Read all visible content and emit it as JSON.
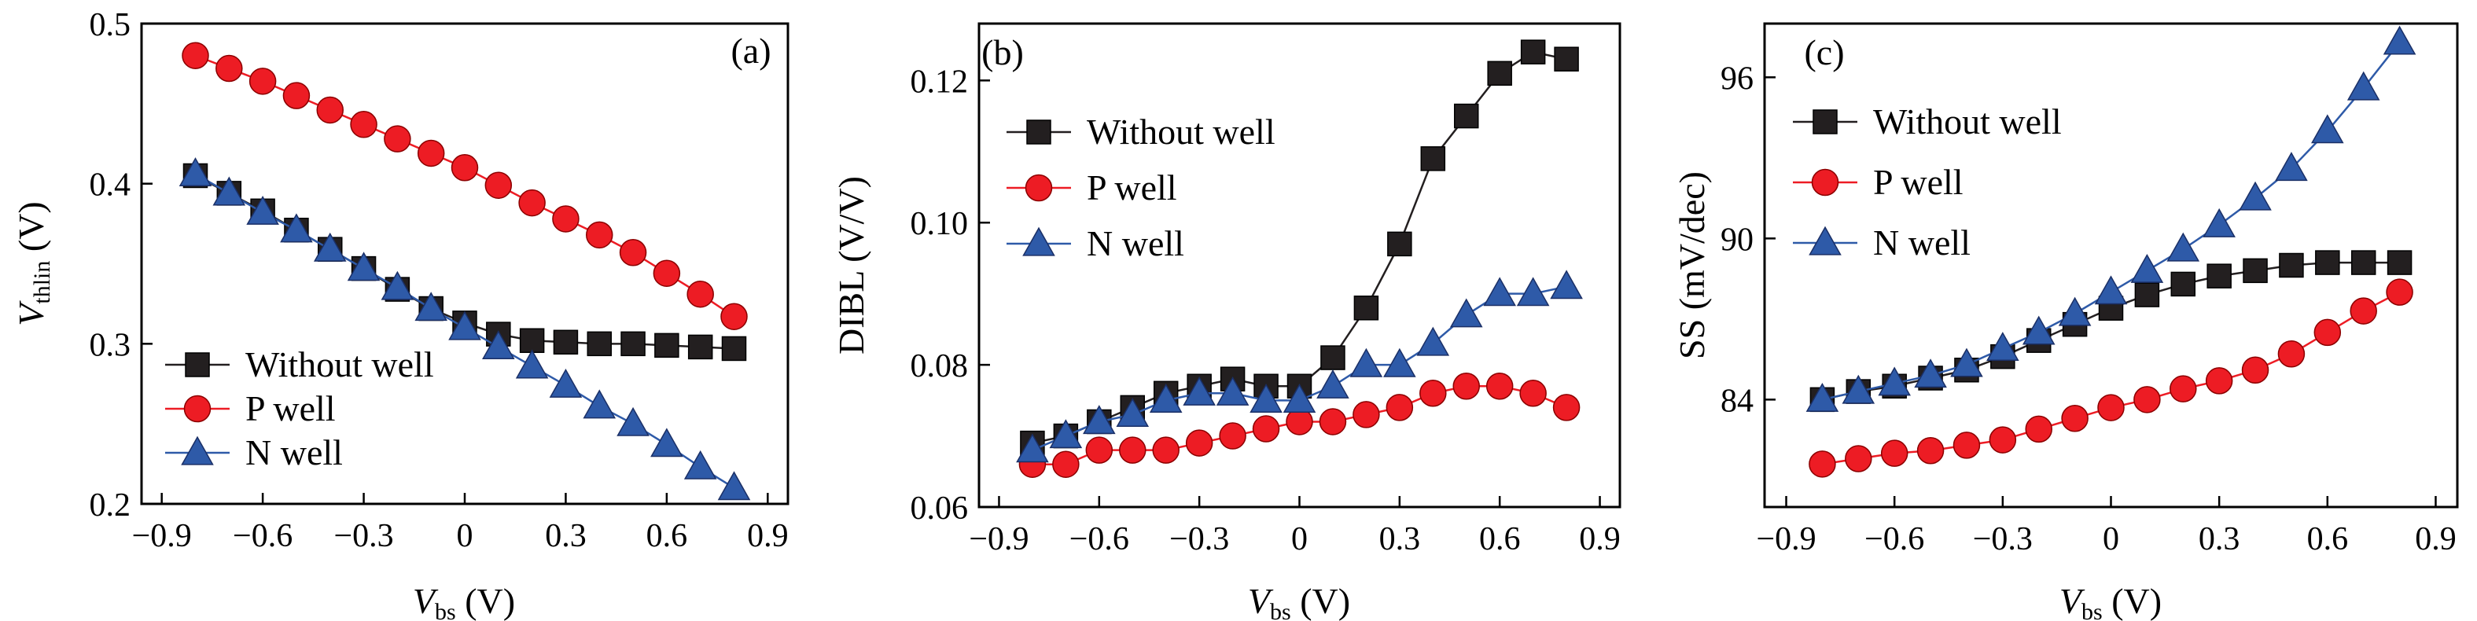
{
  "chart_data": [
    {
      "panel_label": "(a)",
      "type": "line",
      "ylabel_main": "V",
      "ylabel_sub": "thlin",
      "ylabel_unit": " (V)",
      "xlabel_main": "V",
      "xlabel_sub": "bs",
      "xlabel_unit": " (V)",
      "xlim": [
        -0.96,
        0.96
      ],
      "ylim": [
        0.2,
        0.5
      ],
      "xticks": [
        -0.9,
        -0.6,
        -0.3,
        0,
        0.3,
        0.6,
        0.9
      ],
      "xtick_labels": [
        "−0.9",
        "−0.6",
        "−0.3",
        "0",
        "0.3",
        "0.6",
        "0.9"
      ],
      "yticks": [
        0.2,
        0.3,
        0.4,
        0.5
      ],
      "ytick_labels": [
        "0.2",
        "0.3",
        "0.4",
        "0.5"
      ],
      "legend_position": "bottom-left",
      "x": [
        -0.8,
        -0.7,
        -0.6,
        -0.5,
        -0.4,
        -0.3,
        -0.2,
        -0.1,
        0,
        0.1,
        0.2,
        0.3,
        0.4,
        0.5,
        0.6,
        0.7,
        0.8
      ],
      "series": [
        {
          "name": "Without well",
          "marker": "square",
          "color": "#231f20",
          "values": [
            0.405,
            0.394,
            0.383,
            0.371,
            0.359,
            0.347,
            0.334,
            0.322,
            0.313,
            0.306,
            0.302,
            0.301,
            0.3,
            0.3,
            0.299,
            0.298,
            0.297
          ]
        },
        {
          "name": "P well",
          "marker": "circle",
          "color": "#ed1c24",
          "values": [
            0.48,
            0.472,
            0.464,
            0.455,
            0.446,
            0.437,
            0.428,
            0.419,
            0.41,
            0.399,
            0.388,
            0.378,
            0.368,
            0.357,
            0.344,
            0.331,
            0.317
          ]
        },
        {
          "name": "N well",
          "marker": "triangle",
          "color": "#2e5aa8",
          "values": [
            0.406,
            0.394,
            0.382,
            0.371,
            0.359,
            0.347,
            0.335,
            0.322,
            0.31,
            0.298,
            0.286,
            0.274,
            0.261,
            0.25,
            0.237,
            0.223,
            0.21
          ]
        }
      ]
    },
    {
      "panel_label": "(b)",
      "type": "line",
      "ylabel_main": "DIBL (V/V)",
      "ylabel_sub": "",
      "ylabel_unit": "",
      "xlabel_main": "V",
      "xlabel_sub": "bs",
      "xlabel_unit": " (V)",
      "xlim": [
        -0.96,
        0.96
      ],
      "ylim": [
        0.06,
        0.128
      ],
      "xticks": [
        -0.9,
        -0.6,
        -0.3,
        0,
        0.3,
        0.6,
        0.9
      ],
      "xtick_labels": [
        "−0.9",
        "−0.6",
        "−0.3",
        "0",
        "0.3",
        "0.6",
        "0.9"
      ],
      "yticks": [
        0.06,
        0.08,
        0.1,
        0.12
      ],
      "ytick_labels": [
        "0.06",
        "0.08",
        "0.10",
        "0.12"
      ],
      "legend_position": "top-left",
      "x": [
        -0.8,
        -0.7,
        -0.6,
        -0.5,
        -0.4,
        -0.3,
        -0.2,
        -0.1,
        0,
        0.1,
        0.2,
        0.3,
        0.4,
        0.5,
        0.6,
        0.7,
        0.8
      ],
      "series": [
        {
          "name": "Without well",
          "marker": "square",
          "color": "#231f20",
          "values": [
            0.069,
            0.07,
            0.072,
            0.074,
            0.076,
            0.077,
            0.078,
            0.077,
            0.077,
            0.081,
            0.088,
            0.097,
            0.109,
            0.115,
            0.121,
            0.124,
            0.123
          ]
        },
        {
          "name": "P well",
          "marker": "circle",
          "color": "#ed1c24",
          "values": [
            0.066,
            0.066,
            0.068,
            0.068,
            0.068,
            0.069,
            0.07,
            0.071,
            0.072,
            0.072,
            0.073,
            0.074,
            0.076,
            0.077,
            0.077,
            0.076,
            0.074
          ]
        },
        {
          "name": "N well",
          "marker": "triangle",
          "color": "#2e5aa8",
          "values": [
            0.068,
            0.07,
            0.072,
            0.073,
            0.075,
            0.076,
            0.076,
            0.075,
            0.075,
            0.077,
            0.08,
            0.08,
            0.083,
            0.087,
            0.09,
            0.09,
            0.091
          ]
        }
      ]
    },
    {
      "panel_label": "(c)",
      "type": "line",
      "ylabel_main": "SS (mV/dec)",
      "ylabel_sub": "",
      "ylabel_unit": "",
      "xlabel_main": "V",
      "xlabel_sub": "bs",
      "xlabel_unit": " (V)",
      "xlim": [
        -0.96,
        0.96
      ],
      "ylim": [
        80,
        98
      ],
      "xticks": [
        -0.9,
        -0.6,
        -0.3,
        0,
        0.3,
        0.6,
        0.9
      ],
      "xtick_labels": [
        "−0.9",
        "−0.6",
        "−0.3",
        "0",
        "0.3",
        "0.6",
        "0.9"
      ],
      "yticks": [
        84,
        90,
        96
      ],
      "ytick_labels": [
        "84",
        "90",
        "96"
      ],
      "legend_position": "top-left",
      "x": [
        -0.8,
        -0.7,
        -0.6,
        -0.5,
        -0.4,
        -0.3,
        -0.2,
        -0.1,
        0,
        0.1,
        0.2,
        0.3,
        0.4,
        0.5,
        0.6,
        0.7,
        0.8
      ],
      "series": [
        {
          "name": "Without well",
          "marker": "square",
          "color": "#231f20",
          "values": [
            84.0,
            84.3,
            84.5,
            84.8,
            85.1,
            85.6,
            86.2,
            86.8,
            87.4,
            87.9,
            88.3,
            88.6,
            88.8,
            89.0,
            89.1,
            89.1,
            89.1
          ]
        },
        {
          "name": "P well",
          "marker": "circle",
          "color": "#ed1c24",
          "values": [
            81.6,
            81.8,
            82.0,
            82.1,
            82.3,
            82.5,
            82.9,
            83.3,
            83.7,
            84.0,
            84.4,
            84.7,
            85.1,
            85.7,
            86.5,
            87.3,
            88.0
          ]
        },
        {
          "name": "N well",
          "marker": "triangle",
          "color": "#2e5aa8",
          "values": [
            84.0,
            84.3,
            84.6,
            84.9,
            85.3,
            85.9,
            86.5,
            87.2,
            88.0,
            88.8,
            89.6,
            90.5,
            91.5,
            92.6,
            94.0,
            95.6,
            97.3
          ]
        }
      ]
    }
  ]
}
